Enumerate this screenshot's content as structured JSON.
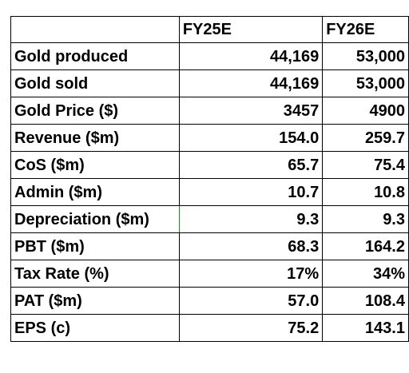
{
  "table": {
    "columns": [
      "",
      "FY25E",
      "FY26E"
    ],
    "rows": [
      {
        "label": "Gold produced",
        "fy25": "44,169",
        "fy26": "53,000"
      },
      {
        "label": "Gold sold",
        "fy25": "44,169",
        "fy26": "53,000"
      },
      {
        "label": "Gold Price ($)",
        "fy25": "3457",
        "fy26": "4900"
      },
      {
        "label": "Revenue ($m)",
        "fy25": "154.0",
        "fy26": "259.7"
      },
      {
        "label": "CoS ($m)",
        "fy25": "65.7",
        "fy26": "75.4"
      },
      {
        "label": "Admin ($m)",
        "fy25": "10.7",
        "fy26": "10.8"
      },
      {
        "label": "Depreciation ($m)",
        "fy25": "9.3",
        "fy26": "9.3"
      },
      {
        "label": "PBT ($m)",
        "fy25": "68.3",
        "fy26": "164.2"
      },
      {
        "label": "Tax Rate (%)",
        "fy25": "17%",
        "fy26": "34%"
      },
      {
        "label": "PAT ($m)",
        "fy25": "57.0",
        "fy26": "108.4"
      },
      {
        "label": "EPS (c)",
        "fy25": "75.2",
        "fy26": "143.1"
      }
    ]
  },
  "colors": {
    "text": "#000000",
    "border": "#000000",
    "background": "#ffffff"
  }
}
